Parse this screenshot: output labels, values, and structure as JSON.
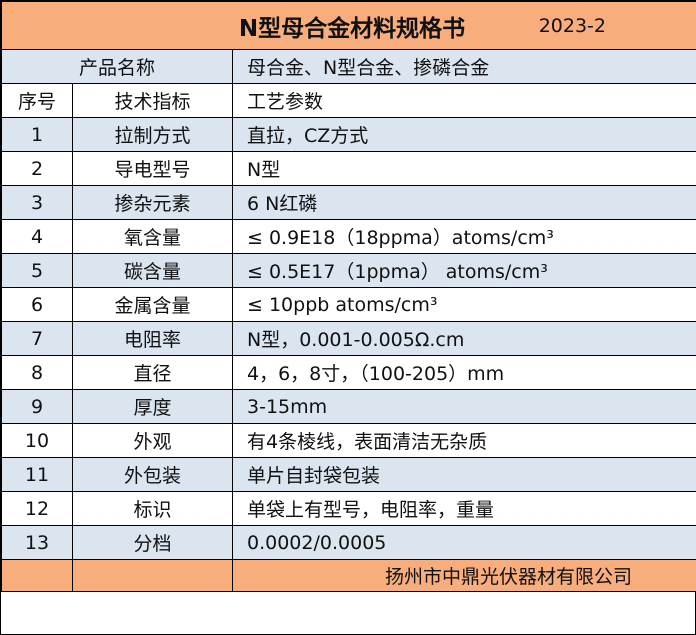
{
  "header": {
    "title": "N型母合金材料规格书",
    "date": "2023-2"
  },
  "product": {
    "label": "产品名称",
    "value": "母合金、N型合金、掺磷合金"
  },
  "columns": {
    "no": "序号",
    "spec": "技术指标",
    "param": "工艺参数"
  },
  "rows": [
    {
      "no": "1",
      "spec": "拉制方式",
      "param": "直拉，CZ方式"
    },
    {
      "no": "2",
      "spec": "导电型号",
      "param": "N型"
    },
    {
      "no": "3",
      "spec": "掺杂元素",
      "param": "6 N红磷"
    },
    {
      "no": "4",
      "spec": "氧含量",
      "param": "≤ 0.9E18（18ppma）atoms/cm³"
    },
    {
      "no": "5",
      "spec": "碳含量",
      "param": "≤ 0.5E17（1ppma）  atoms/cm³"
    },
    {
      "no": "6",
      "spec": "金属含量",
      "param": "≤ 10ppb   atoms/cm³"
    },
    {
      "no": "7",
      "spec": "电阻率",
      "param": "N型，0.001-0.005Ω.cm"
    },
    {
      "no": "8",
      "spec": "直径",
      "param": "4，6，8寸，（100-205）mm"
    },
    {
      "no": "9",
      "spec": "厚度",
      "param": "3-15mm"
    },
    {
      "no": "10",
      "spec": "外观",
      "param": "有4条棱线，表面清洁无杂质"
    },
    {
      "no": "11",
      "spec": "外包装",
      "param": "单片自封袋包装"
    },
    {
      "no": "12",
      "spec": "标识",
      "param": "单袋上有型号，电阻率，重量"
    },
    {
      "no": "13",
      "spec": "分档",
      "param": "0.0002/0.0005"
    }
  ],
  "footer": {
    "company": "扬州市中鼎光伏器材有限公司"
  },
  "colors": {
    "title_bg": "#f8ad7c",
    "row_blue": "#dae5f0",
    "row_white": "#ffffff"
  }
}
